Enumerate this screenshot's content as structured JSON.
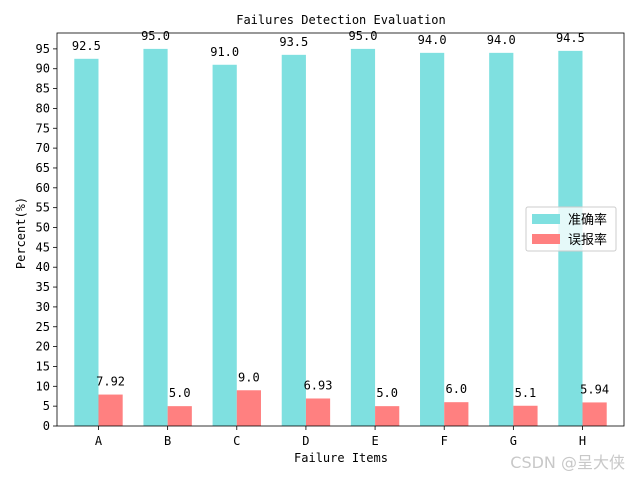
{
  "chart_data": {
    "type": "bar",
    "title": "Failures Detection Evaluation",
    "xlabel": "Failure Items",
    "ylabel": "Percent(%)",
    "categories": [
      "A",
      "B",
      "C",
      "D",
      "E",
      "F",
      "G",
      "H"
    ],
    "series": [
      {
        "name": "准确率",
        "color": "#7fe0e0",
        "values": [
          92.5,
          95.0,
          91.0,
          93.5,
          95.0,
          94.0,
          94.0,
          94.5
        ],
        "labels": [
          "92.5",
          "95.0",
          "91.0",
          "93.5",
          "95.0",
          "94.0",
          "94.0",
          "94.5"
        ]
      },
      {
        "name": "误报率",
        "color": "#ff8080",
        "values": [
          7.92,
          5.0,
          9.0,
          6.93,
          5.0,
          6.0,
          5.1,
          5.94
        ],
        "labels": [
          "7.92",
          "5.0",
          "9.0",
          "6.93",
          "5.0",
          "6.0",
          "5.1",
          "5.94"
        ]
      }
    ],
    "ylim": [
      0,
      99
    ],
    "yticks": [
      0,
      5,
      10,
      15,
      20,
      25,
      30,
      35,
      40,
      45,
      50,
      55,
      60,
      65,
      70,
      75,
      80,
      85,
      90,
      95
    ],
    "legend_position": "center-right",
    "grid": false
  },
  "watermark": "CSDN @呈大侠"
}
